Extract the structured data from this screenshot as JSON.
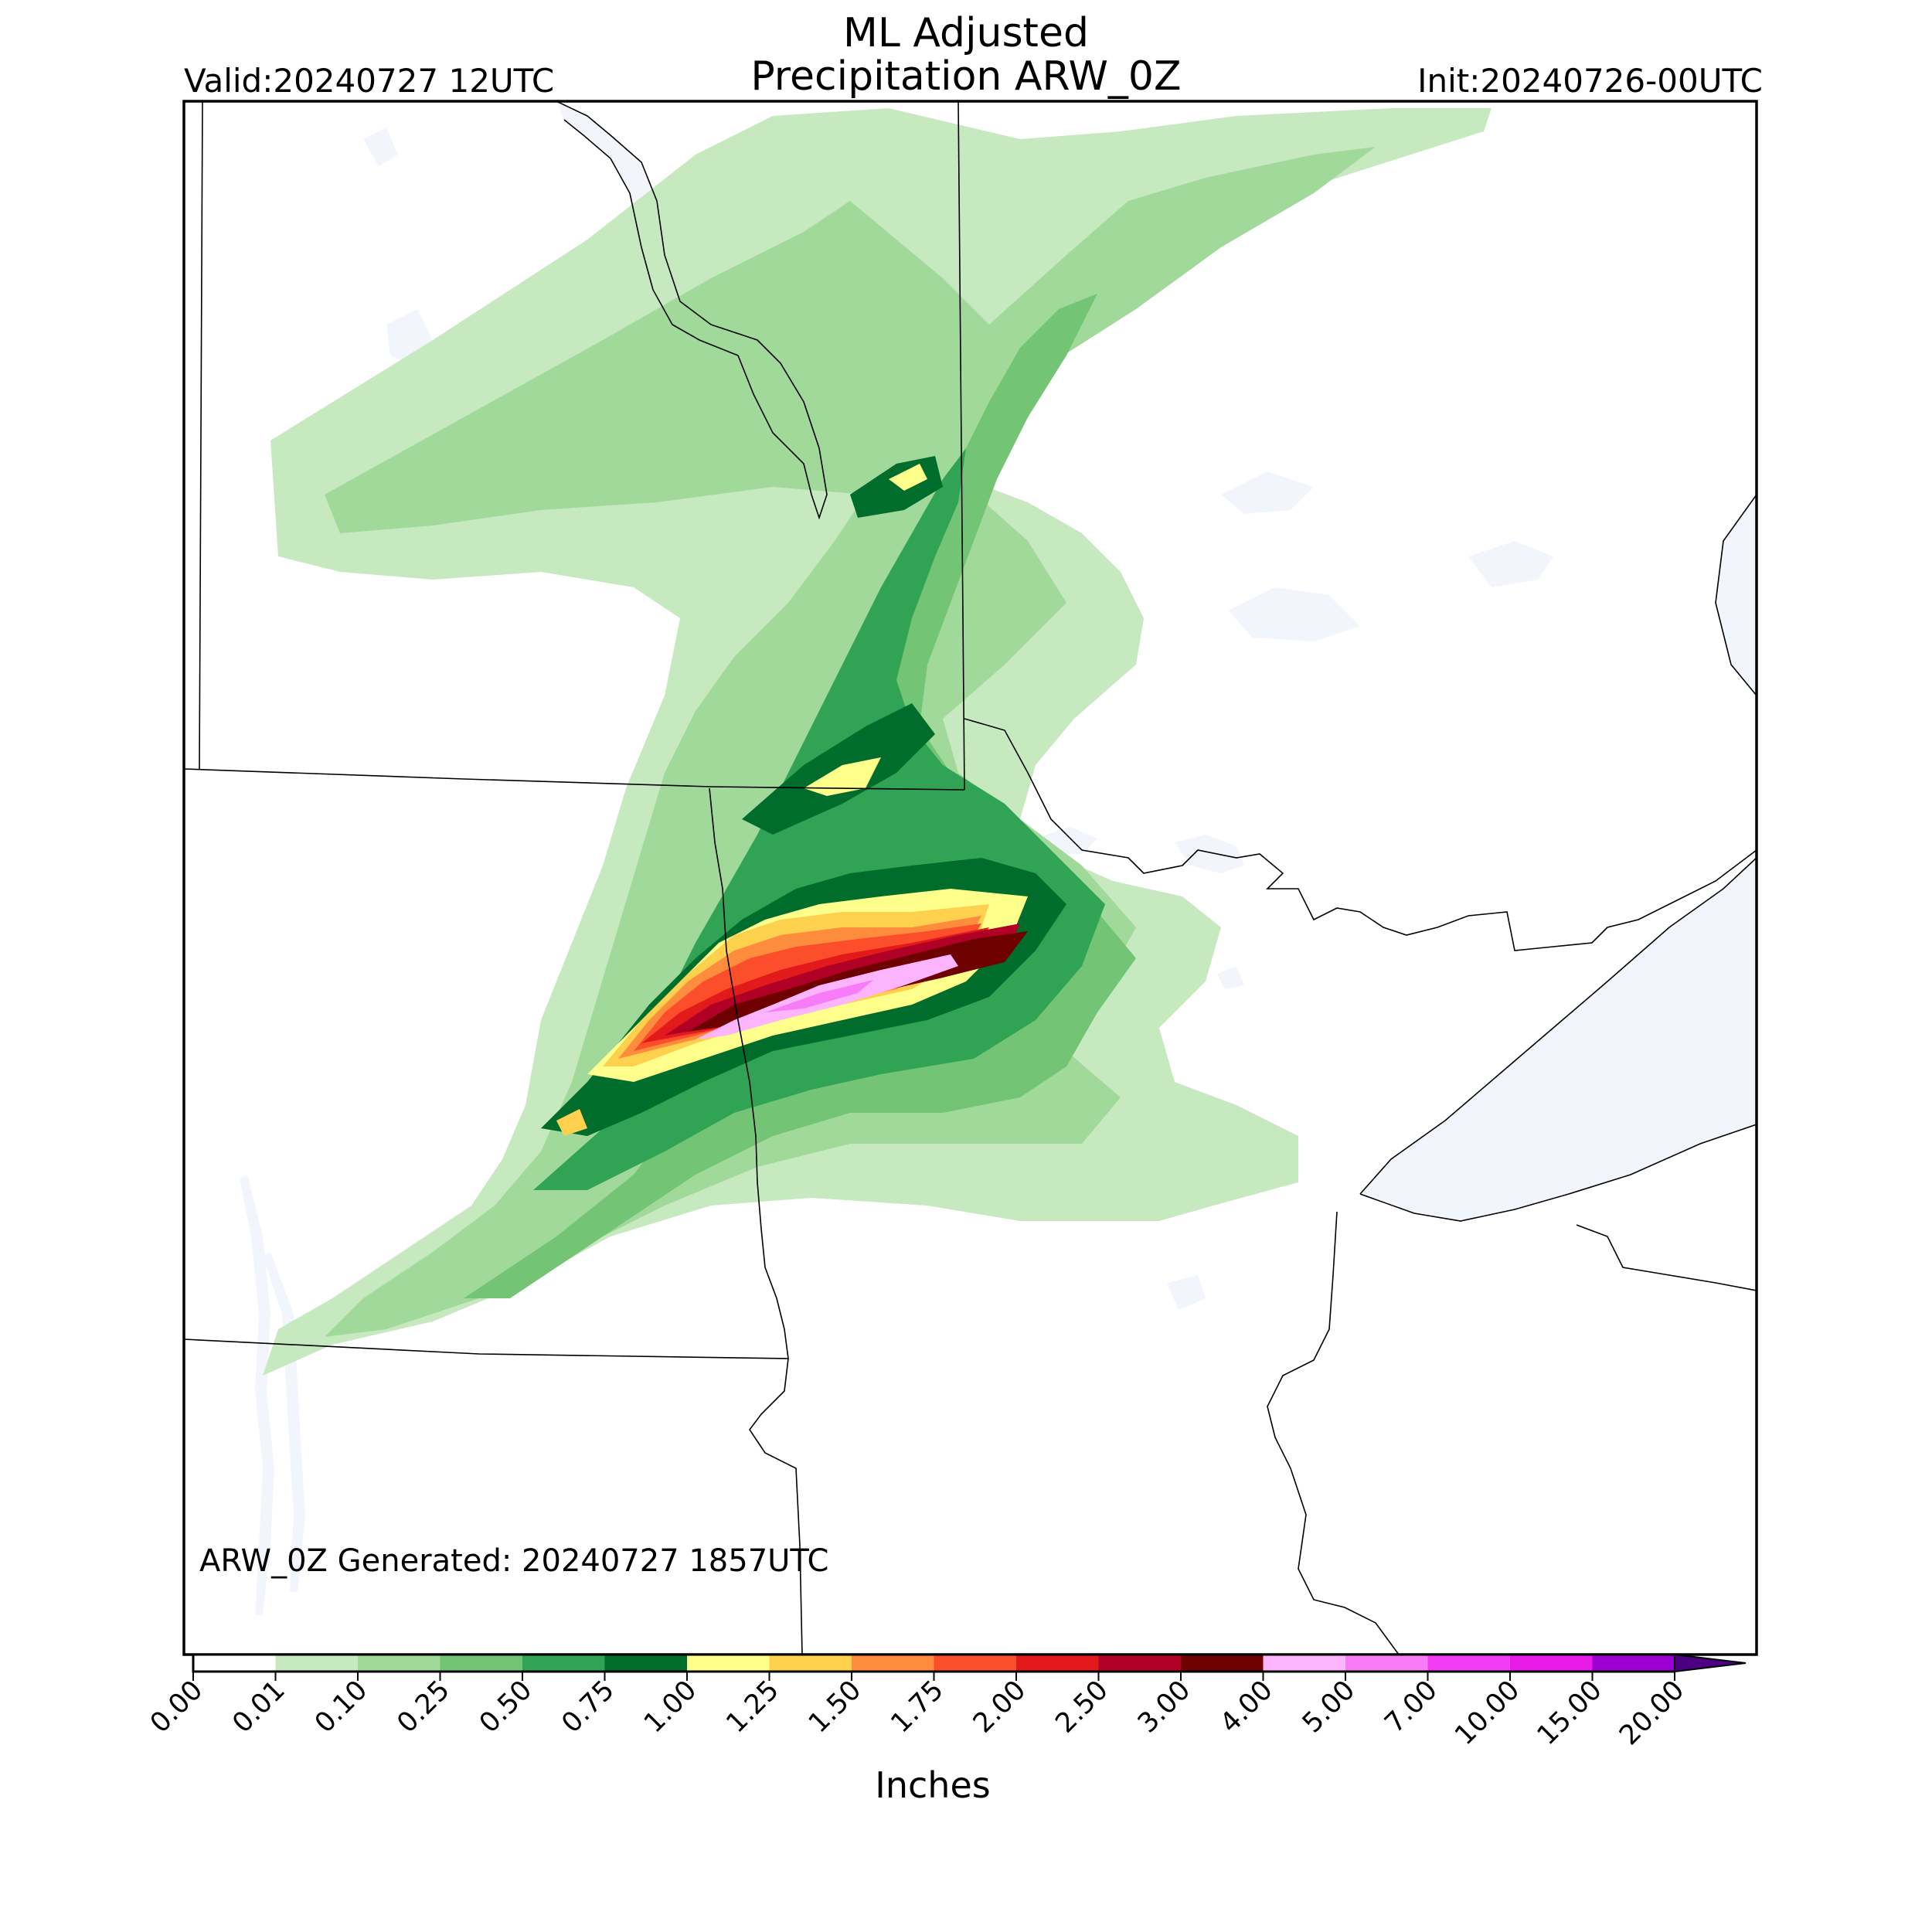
{
  "title": {
    "line1": "ML Adjusted",
    "line2": "Precipitation ARW_0Z"
  },
  "valid": "Valid:20240727 12UTC",
  "init": "Init:20240726-00UTC",
  "generated": "ARW_0Z Generated: 20240727 1857UTC",
  "colorbar": {
    "label": "Inches",
    "bins": [
      {
        "from": "0.00",
        "color": "#ffffff"
      },
      {
        "from": "0.01",
        "color": "#c7e9c0"
      },
      {
        "from": "0.10",
        "color": "#a1d99b"
      },
      {
        "from": "0.25",
        "color": "#74c476"
      },
      {
        "from": "0.50",
        "color": "#31a354"
      },
      {
        "from": "0.75",
        "color": "#006d2c"
      },
      {
        "from": "1.00",
        "color": "#ffff8c"
      },
      {
        "from": "1.25",
        "color": "#fdd04e"
      },
      {
        "from": "1.50",
        "color": "#fd8d3c"
      },
      {
        "from": "1.75",
        "color": "#fc4e2a"
      },
      {
        "from": "2.00",
        "color": "#e31a1c"
      },
      {
        "from": "2.50",
        "color": "#b10026"
      },
      {
        "from": "3.00",
        "color": "#6e0000"
      },
      {
        "from": "4.00",
        "color": "#fcb4fc"
      },
      {
        "from": "5.00",
        "color": "#f87cf8"
      },
      {
        "from": "7.00",
        "color": "#f43cf4"
      },
      {
        "from": "10.00",
        "color": "#e81ae8"
      },
      {
        "from": "15.00",
        "color": "#9b00d0"
      }
    ],
    "last_tick": "20.00",
    "extend_color": "#4b0082"
  },
  "map": {
    "water_color": "#f2f5fb",
    "border_color": "#000000",
    "frame_color": "#000000"
  }
}
